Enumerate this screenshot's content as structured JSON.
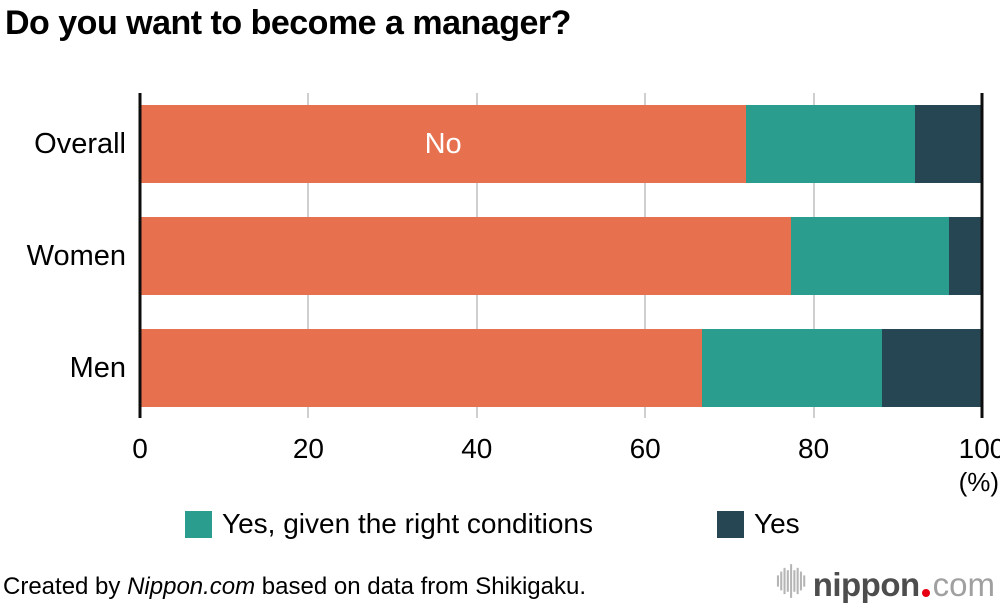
{
  "title": "Do you want to become a manager?",
  "chart_data": {
    "type": "bar",
    "orientation": "horizontal",
    "stacked": true,
    "grid": true,
    "categories": [
      "Overall",
      "Women",
      "Men"
    ],
    "series": [
      {
        "name": "No",
        "color": "#e7714f",
        "values": [
          72,
          77.3,
          66.7
        ]
      },
      {
        "name": "Yes, given the right conditions",
        "color": "#2a9d8f",
        "values": [
          20,
          18.8,
          21.4
        ]
      },
      {
        "name": "Yes",
        "color": "#264653",
        "values": [
          8,
          3.9,
          11.9
        ]
      }
    ],
    "xlim": [
      0,
      100
    ],
    "x_ticks": [
      0,
      20,
      40,
      60,
      80,
      100
    ],
    "x_unit_label": "(%)",
    "inline_label": {
      "category_index": 0,
      "series_index": 0,
      "text": "No"
    },
    "legend": [
      {
        "label": "Yes, given the right conditions",
        "color": "#2a9d8f"
      },
      {
        "label": "Yes",
        "color": "#264653"
      }
    ],
    "legend_position": "bottom"
  },
  "footer": {
    "credit_prefix": "Created by ",
    "credit_brand": "Nippon.com",
    "credit_suffix": " based on data from Shikigaku.",
    "logo": {
      "icon": "soundwave-bars-icon",
      "bold_part": "nippon",
      "separator": ".",
      "light_part": "com",
      "dot_color": "#e60012"
    }
  },
  "colors": {
    "background": "#ffffff",
    "axis_line": "#0d0d0d",
    "gridline": "#cfcfcf",
    "no_segment": "#e7714f",
    "yes_conditions_segment": "#2a9d8f",
    "yes_segment": "#264653"
  }
}
